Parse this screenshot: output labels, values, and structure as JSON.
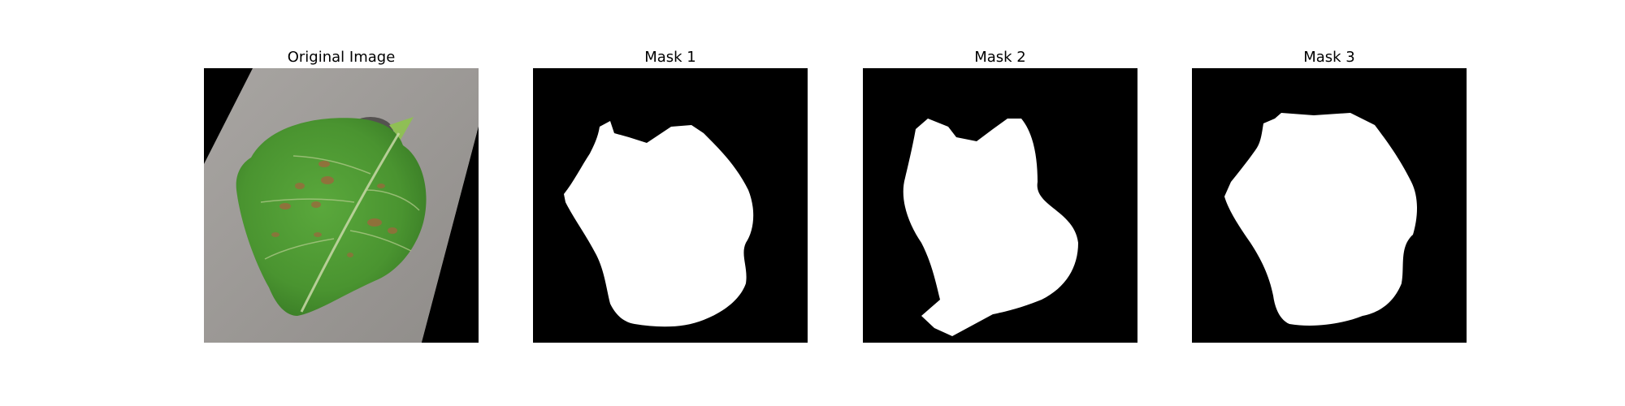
{
  "figure": {
    "panels": [
      {
        "id": "original",
        "title": "Original Image"
      },
      {
        "id": "mask1",
        "title": "Mask 1"
      },
      {
        "id": "mask2",
        "title": "Mask 2"
      },
      {
        "id": "mask3",
        "title": "Mask 3"
      }
    ]
  },
  "colors": {
    "background": "#ffffff",
    "mask_background": "#000000",
    "mask_foreground": "#ffffff",
    "paper_gray": "#9b9895",
    "leaf_green": "#4f9a34",
    "leaf_dark_green": "#2f6e22",
    "lesion_brown": "#9a6a3c"
  }
}
